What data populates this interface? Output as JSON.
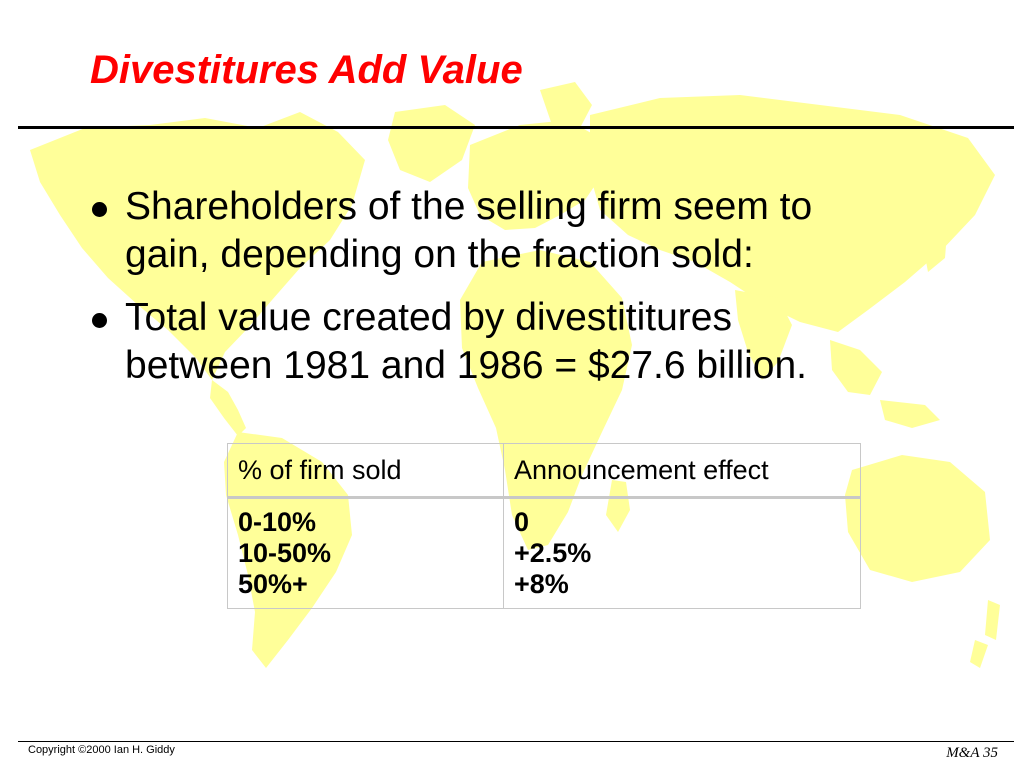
{
  "slide": {
    "title": "Divestitures Add Value",
    "background_icon": "world-map-icon",
    "colors": {
      "title": "#ff0000",
      "map": "#ffff99",
      "text": "#000000",
      "table_border": "#c8c8c8"
    }
  },
  "bullets": [
    {
      "line1": "Shareholders of the selling firm seem to",
      "line2": "gain, depending on the fraction sold:"
    },
    {
      "line1": "Total value created by divestititures",
      "line2": "between 1981 and 1986 = $27.6 billion."
    }
  ],
  "table": {
    "headers": [
      "% of firm sold",
      "Announcement effect"
    ],
    "rows": [
      [
        "0-10%",
        "0"
      ],
      [
        "10-50%",
        "+2.5%"
      ],
      [
        "50%+",
        "+8%"
      ]
    ]
  },
  "footer": {
    "copyright": "Copyright ©2000 Ian H. Giddy",
    "slide_label": "M&A 35"
  }
}
